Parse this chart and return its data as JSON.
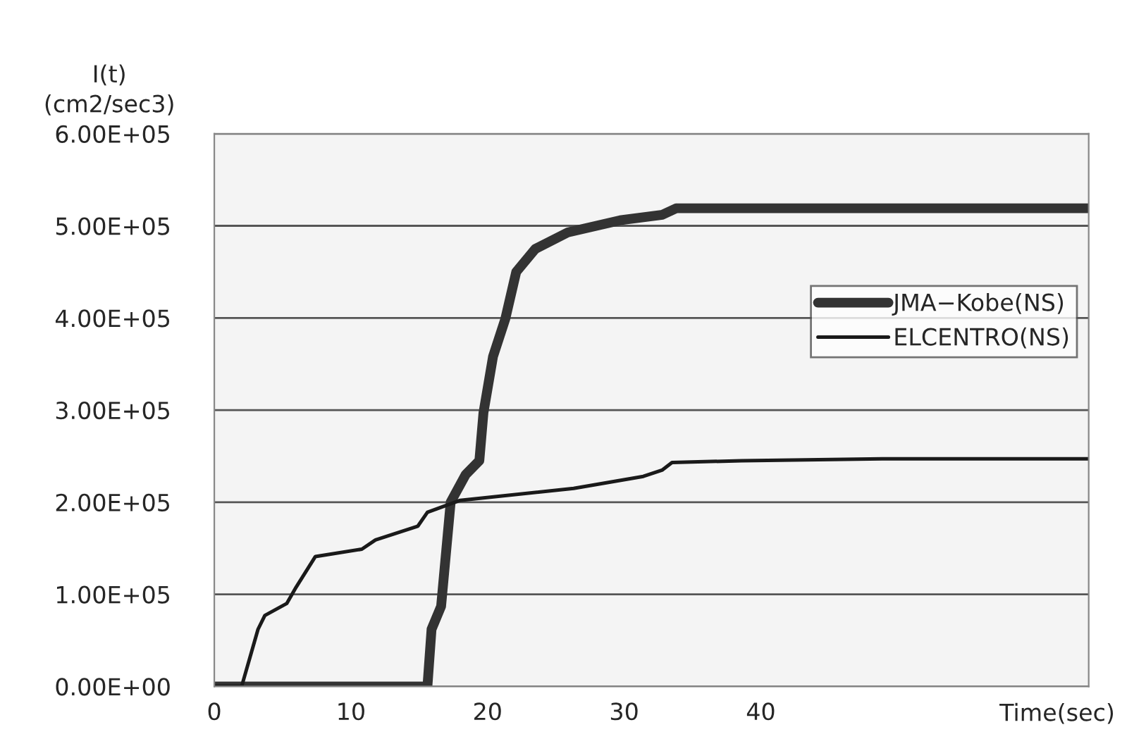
{
  "chart_data": {
    "type": "line",
    "ylabel": "I(t)\n(cm2/sec3)",
    "xlabel": "Time(sec)",
    "xlim": [
      0,
      64
    ],
    "xticks": [
      0,
      10,
      20,
      30,
      40
    ],
    "ylim": [
      0,
      600000
    ],
    "yticks": [
      {
        "value": 0,
        "label": "0.00E+00"
      },
      {
        "value": 100000,
        "label": "1.00E+05"
      },
      {
        "value": 200000,
        "label": "2.00E+05"
      },
      {
        "value": 300000,
        "label": "3.00E+05"
      },
      {
        "value": 400000,
        "label": "4.00E+05"
      },
      {
        "value": 500000,
        "label": "5.00E+05"
      },
      {
        "value": 600000,
        "label": "6.00E+05"
      }
    ],
    "grid": "y",
    "legend": "right",
    "line_style": "solid",
    "series": [
      {
        "name": "JMA−Kobe(NS)",
        "color": "#333333",
        "x": [
          0,
          15.6,
          15.9,
          16.6,
          17.3,
          18.4,
          19.4,
          19.7,
          20.4,
          21.3,
          22.1,
          23.5,
          25.9,
          29.7,
          32.8,
          33.8,
          64
        ],
        "values": [
          0,
          0,
          62000,
          87000,
          200000,
          230000,
          245000,
          297000,
          358000,
          399000,
          450000,
          475000,
          493000,
          506000,
          512000,
          519000,
          519000
        ]
      },
      {
        "name": "ELCENTRO(NS)",
        "color": "#1a1a1a",
        "x": [
          0,
          2.0,
          3.2,
          3.7,
          5.3,
          6.0,
          7.4,
          10.8,
          11.8,
          14.9,
          15.6,
          18.0,
          26.3,
          31.4,
          32.8,
          33.5,
          38.6,
          48.9,
          64
        ],
        "values": [
          0,
          0,
          62000,
          77000,
          90000,
          108000,
          141000,
          149000,
          159000,
          174000,
          189000,
          202000,
          215000,
          228000,
          235000,
          243000,
          245000,
          247000,
          247000
        ]
      }
    ]
  }
}
